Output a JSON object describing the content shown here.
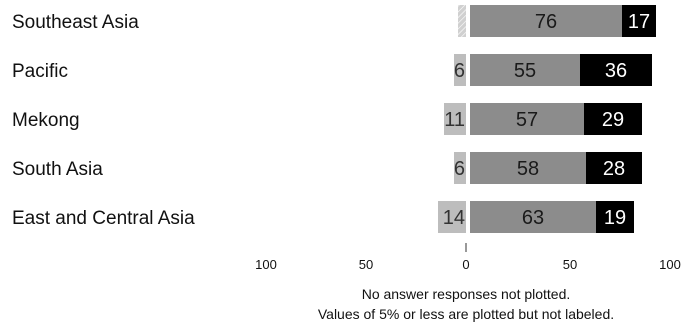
{
  "chart_data": {
    "type": "bar",
    "subtype": "diverging-stacked-horizontal",
    "categories": [
      "Southeast Asia",
      "Pacific",
      "Mekong",
      "South Asia",
      "East and Central Asia"
    ],
    "series": [
      {
        "values": [
          4,
          6,
          11,
          6,
          14
        ],
        "color": "#bdbdbd",
        "direction": "left"
      },
      {
        "values": [
          76,
          55,
          57,
          58,
          63
        ],
        "color": "#8c8c8c",
        "direction": "right"
      },
      {
        "values": [
          17,
          36,
          29,
          28,
          19
        ],
        "color": "#000000",
        "direction": "right"
      }
    ],
    "xlim": [
      -100,
      100
    ],
    "x_ticks": [
      {
        "value": -100,
        "label": "100"
      },
      {
        "value": -50,
        "label": "50"
      },
      {
        "value": 0,
        "label": "0"
      },
      {
        "value": 50,
        "label": "50"
      },
      {
        "value": 100,
        "label": "100"
      }
    ],
    "label_threshold": 5,
    "grid": false,
    "legend": "none"
  },
  "notes": {
    "line1": "No answer responses not plotted.",
    "line2": "Values of 5% or less are plotted but not labeled."
  }
}
